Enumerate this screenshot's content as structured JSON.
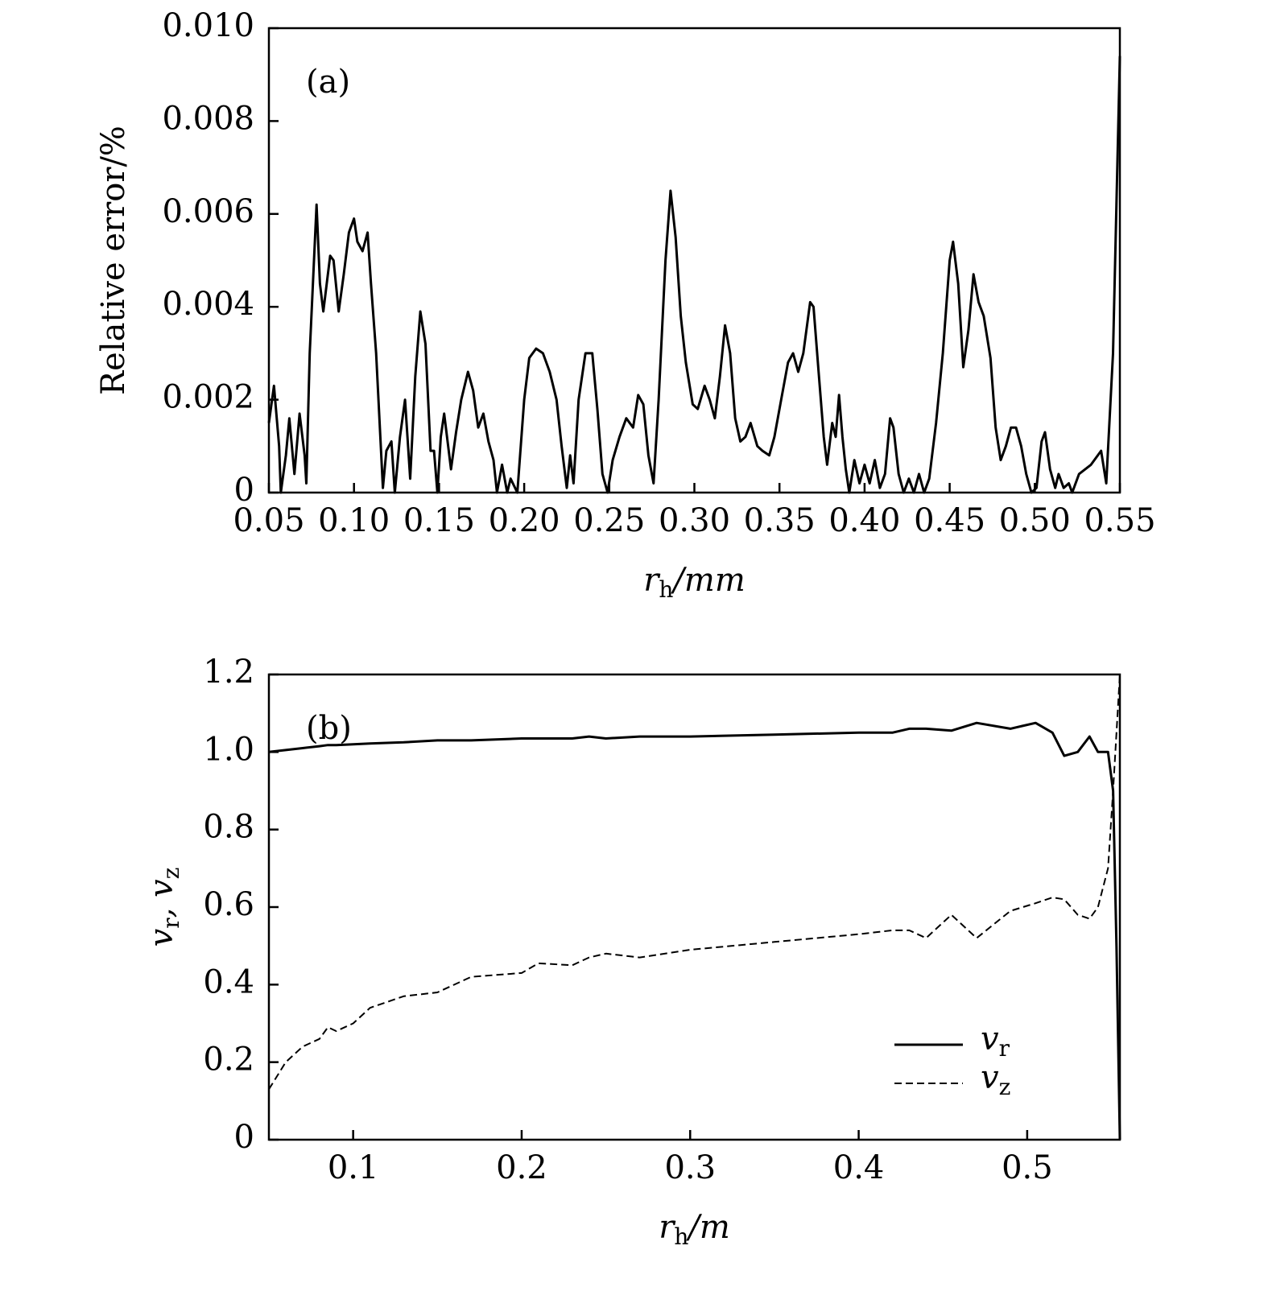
{
  "chart_data": [
    {
      "type": "line",
      "annotation": "(a)",
      "ylabel": "Relative error/%",
      "xlabel": [
        "r",
        "h",
        "/mm"
      ],
      "xlim": [
        0.05,
        0.55
      ],
      "ylim": [
        0,
        0.01
      ],
      "xticks": [
        0.05,
        {
          "value": 0.1,
          "label": "0.10"
        },
        0.15,
        {
          "value": 0.2,
          "label": "0.20"
        },
        0.25,
        {
          "value": 0.3,
          "label": "0.30"
        },
        0.35,
        {
          "value": 0.4,
          "label": "0.40"
        },
        0.45,
        {
          "value": 0.5,
          "label": "0.50"
        },
        0.55
      ],
      "yticks": [
        0,
        0.002,
        0.004,
        0.006,
        0.008,
        {
          "value": 0.01,
          "label": "0.010"
        }
      ],
      "x": [
        0.05,
        0.053,
        0.056,
        0.057,
        0.06,
        0.062,
        0.065,
        0.068,
        0.071,
        0.072,
        0.074,
        0.078,
        0.08,
        0.082,
        0.086,
        0.088,
        0.091,
        0.094,
        0.097,
        0.1,
        0.102,
        0.105,
        0.108,
        0.11,
        0.113,
        0.117,
        0.119,
        0.122,
        0.124,
        0.127,
        0.13,
        0.133,
        0.136,
        0.139,
        0.142,
        0.145,
        0.147,
        0.149,
        0.151,
        0.153,
        0.157,
        0.16,
        0.163,
        0.167,
        0.17,
        0.173,
        0.176,
        0.179,
        0.182,
        0.184,
        0.187,
        0.19,
        0.192,
        0.196,
        0.2,
        0.203,
        0.207,
        0.211,
        0.215,
        0.219,
        0.222,
        0.225,
        0.227,
        0.229,
        0.232,
        0.236,
        0.24,
        0.243,
        0.246,
        0.249,
        0.252,
        0.256,
        0.26,
        0.264,
        0.267,
        0.27,
        0.273,
        0.276,
        0.279,
        0.283,
        0.286,
        0.289,
        0.292,
        0.295,
        0.299,
        0.302,
        0.306,
        0.309,
        0.312,
        0.315,
        0.318,
        0.321,
        0.324,
        0.327,
        0.33,
        0.333,
        0.337,
        0.34,
        0.344,
        0.347,
        0.351,
        0.355,
        0.358,
        0.361,
        0.364,
        0.368,
        0.37,
        0.373,
        0.376,
        0.378,
        0.381,
        0.383,
        0.385,
        0.387,
        0.389,
        0.391,
        0.394,
        0.397,
        0.4,
        0.403,
        0.406,
        0.409,
        0.412,
        0.415,
        0.417,
        0.42,
        0.423,
        0.426,
        0.429,
        0.432,
        0.435,
        0.438,
        0.442,
        0.446,
        0.45,
        0.452,
        0.455,
        0.458,
        0.461,
        0.464,
        0.467,
        0.47,
        0.474,
        0.477,
        0.48,
        0.483,
        0.486,
        0.489,
        0.492,
        0.495,
        0.498,
        0.501,
        0.504,
        0.506,
        0.509,
        0.512,
        0.514,
        0.517,
        0.52,
        0.522,
        0.526,
        0.533,
        0.539,
        0.542,
        0.546,
        0.55
      ],
      "series": [
        {
          "name": null,
          "color": "#000000",
          "line_style": "solid",
          "values": [
            0.0015,
            0.0023,
            0.001,
            0.0,
            0.0008,
            0.0016,
            0.0004,
            0.0017,
            0.0008,
            0.0002,
            0.003,
            0.0062,
            0.0045,
            0.0039,
            0.0051,
            0.005,
            0.0039,
            0.0047,
            0.0056,
            0.0059,
            0.0054,
            0.0052,
            0.0056,
            0.0045,
            0.003,
            0.0001,
            0.0009,
            0.0011,
            0.0,
            0.0012,
            0.002,
            0.0003,
            0.0025,
            0.0039,
            0.0032,
            0.0009,
            0.0009,
            0.0,
            0.0012,
            0.0017,
            0.0005,
            0.0013,
            0.002,
            0.0026,
            0.0022,
            0.0014,
            0.0017,
            0.0011,
            0.0007,
            0.0,
            0.0006,
            0.0,
            0.0003,
            0.0,
            0.002,
            0.0029,
            0.0031,
            0.003,
            0.0026,
            0.002,
            0.001,
            0.0001,
            0.0008,
            0.0002,
            0.002,
            0.003,
            0.003,
            0.0018,
            0.0004,
            0.0,
            0.0007,
            0.0012,
            0.0016,
            0.0014,
            0.0021,
            0.0019,
            0.0008,
            0.0002,
            0.002,
            0.005,
            0.0065,
            0.0055,
            0.0038,
            0.0028,
            0.0019,
            0.0018,
            0.0023,
            0.002,
            0.0016,
            0.0025,
            0.0036,
            0.003,
            0.0016,
            0.0011,
            0.0012,
            0.0015,
            0.001,
            0.0009,
            0.0008,
            0.0012,
            0.002,
            0.0028,
            0.003,
            0.0026,
            0.003,
            0.0041,
            0.004,
            0.0026,
            0.0012,
            0.0006,
            0.0015,
            0.0012,
            0.0021,
            0.0012,
            0.0005,
            0.0,
            0.0007,
            0.0002,
            0.0006,
            0.0002,
            0.0007,
            0.0001,
            0.0004,
            0.0016,
            0.0014,
            0.0004,
            0.0,
            0.0003,
            0.0,
            0.0004,
            0.0,
            0.0003,
            0.0015,
            0.003,
            0.005,
            0.0054,
            0.0045,
            0.0027,
            0.0035,
            0.0047,
            0.0041,
            0.0038,
            0.0029,
            0.0014,
            0.0007,
            0.001,
            0.0014,
            0.0014,
            0.001,
            0.0004,
            0.0,
            0.0001,
            0.0011,
            0.0013,
            0.0005,
            0.0001,
            0.0004,
            0.0001,
            0.0002,
            0.0,
            0.0004,
            0.0006,
            0.0009,
            0.0002,
            0.003,
            0.0094
          ]
        }
      ]
    },
    {
      "type": "line",
      "annotation": "(b)",
      "ylabel": [
        "v",
        "r",
        ", v",
        "z"
      ],
      "xlabel": [
        "r",
        "h",
        "/m"
      ],
      "xlim": [
        0.05,
        0.555
      ],
      "ylim": [
        0,
        1.2
      ],
      "xticks": [
        0.1,
        0.2,
        0.3,
        0.4,
        0.5
      ],
      "yticks": [
        0,
        0.2,
        0.4,
        0.6,
        0.8,
        {
          "value": 1,
          "label": "1.0"
        },
        1.2
      ],
      "legend": "lower right",
      "x": [
        0.05,
        0.06,
        0.07,
        0.08,
        0.085,
        0.09,
        0.1,
        0.11,
        0.13,
        0.15,
        0.17,
        0.2,
        0.21,
        0.23,
        0.24,
        0.25,
        0.27,
        0.3,
        0.35,
        0.4,
        0.42,
        0.43,
        0.44,
        0.455,
        0.47,
        0.49,
        0.505,
        0.515,
        0.522,
        0.53,
        0.537,
        0.542,
        0.548,
        0.551,
        0.553,
        0.555
      ],
      "series": [
        {
          "name": [
            "v",
            "r"
          ],
          "color": "#000000",
          "line_style": "solid",
          "values": [
            1.0,
            1.005,
            1.01,
            1.015,
            1.018,
            1.018,
            1.02,
            1.022,
            1.025,
            1.03,
            1.03,
            1.035,
            1.035,
            1.035,
            1.04,
            1.035,
            1.04,
            1.04,
            1.045,
            1.05,
            1.05,
            1.06,
            1.06,
            1.055,
            1.075,
            1.06,
            1.075,
            1.05,
            0.99,
            1.0,
            1.04,
            1.0,
            1.0,
            0.9,
            0.5,
            0.0
          ]
        },
        {
          "name": [
            "v",
            "z"
          ],
          "color": "#000000",
          "line_style": "dashed",
          "values": [
            0.13,
            0.2,
            0.24,
            0.26,
            0.29,
            0.28,
            0.3,
            0.34,
            0.37,
            0.38,
            0.42,
            0.43,
            0.455,
            0.45,
            0.47,
            0.48,
            0.47,
            0.49,
            0.51,
            0.53,
            0.54,
            0.54,
            0.52,
            0.58,
            0.52,
            0.59,
            0.61,
            0.625,
            0.62,
            0.58,
            0.57,
            0.6,
            0.7,
            0.9,
            1.05,
            1.2
          ]
        }
      ]
    }
  ]
}
